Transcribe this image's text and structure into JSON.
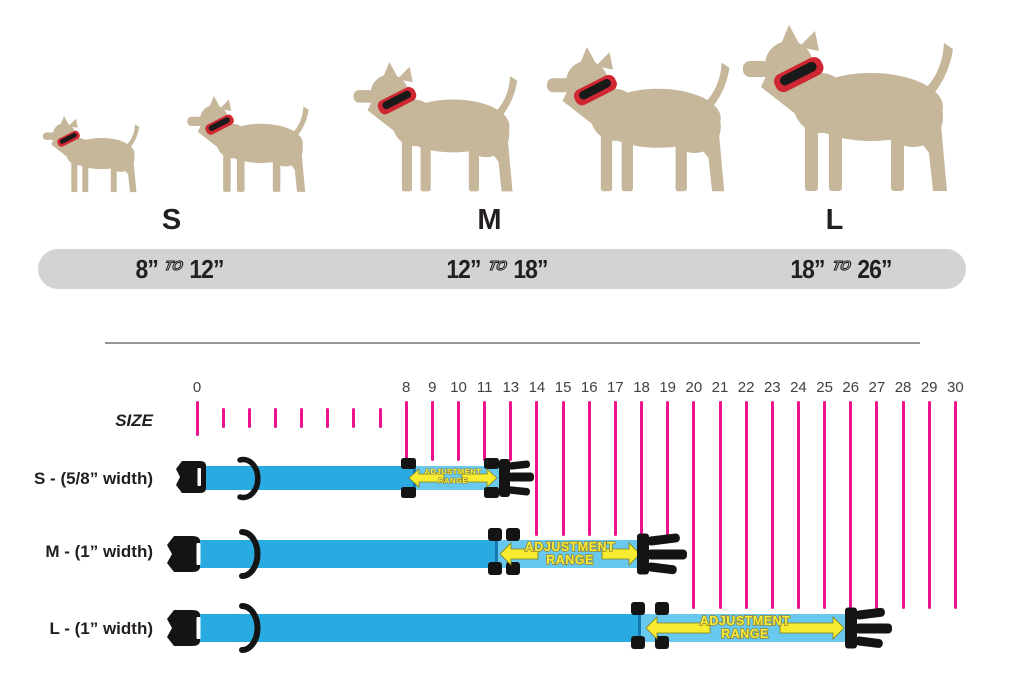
{
  "header": {
    "sizes": [
      {
        "letter": "S",
        "range": {
          "min": "8”",
          "joiner": "TO",
          "max": "12”"
        }
      },
      {
        "letter": "M",
        "range": {
          "min": "12”",
          "joiner": "TO",
          "max": "18”"
        }
      },
      {
        "letter": "L",
        "range": {
          "min": "18”",
          "joiner": "TO",
          "max": "26”"
        }
      }
    ]
  },
  "ruler": {
    "axis_label": "SIZE",
    "zero_label": "0",
    "minor_tick_count": 7,
    "labels": [
      "8",
      "9",
      "10",
      "11",
      "13",
      "14",
      "15",
      "16",
      "17",
      "18",
      "19",
      "20",
      "21",
      "22",
      "23",
      "24",
      "25",
      "26",
      "27",
      "28",
      "29",
      "30"
    ]
  },
  "collars": [
    {
      "name": "S",
      "label": "S - (5/8” width)",
      "adjustment": {
        "line1": "ADJUSTMENT",
        "line2": "RANGE"
      }
    },
    {
      "name": "M",
      "label": "M - (1” width)",
      "adjustment": {
        "line1": "ADJUSTMENT",
        "line2": "RANGE"
      }
    },
    {
      "name": "L",
      "label": "L - (1” width)",
      "adjustment": {
        "line1": "ADJUSTMENT",
        "line2": "RANGE"
      }
    }
  ],
  "colors": {
    "dog_silhouette": "#c6b69a",
    "collar_accent_red": "#cf2731",
    "size_bar_gray": "#d1d3d4",
    "ruler_pink": "#ec148c",
    "strap_blue": "#29abe2",
    "strap_adjust_blue": "#68c8ee",
    "hardware_black": "#141414",
    "arrow_yellow": "#f7ec32",
    "text_dark": "#231f20"
  }
}
